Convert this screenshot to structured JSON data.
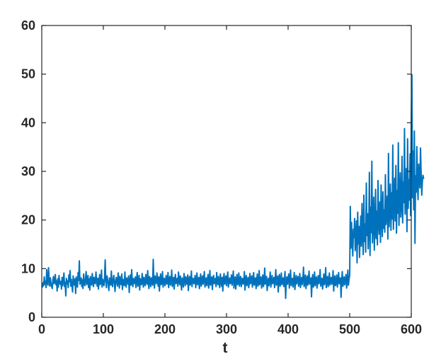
{
  "chart_data": {
    "type": "line",
    "title": "",
    "xlabel": "t",
    "ylabel": "",
    "xlim": [
      0,
      600
    ],
    "ylim": [
      0,
      60
    ],
    "xticks": [
      0,
      100,
      200,
      300,
      400,
      500,
      600
    ],
    "yticks": [
      0,
      10,
      20,
      30,
      40,
      50,
      60
    ],
    "grid": false,
    "series_color": "#0072BD",
    "series": [
      {
        "x_start": 1,
        "x_step": 1,
        "values": [
          6.2,
          7.1,
          6.5,
          8.3,
          6.8,
          7.4,
          6.1,
          9.8,
          7.2,
          6.6,
          10.2,
          7.8,
          6.4,
          8.1,
          7.0,
          6.3,
          5.9,
          7.6,
          8.4,
          6.9,
          7.3,
          8.8,
          6.7,
          7.5,
          5.4,
          7.9,
          6.2,
          8.6,
          7.1,
          6.8,
          7.4,
          5.8,
          8.2,
          6.5,
          7.7,
          9.1,
          6.3,
          7.2,
          4.4,
          8.0,
          6.9,
          7.5,
          6.1,
          8.7,
          7.3,
          9.6,
          6.4,
          7.8,
          6.7,
          5.2,
          8.5,
          7.1,
          6.6,
          7.9,
          4.9,
          8.3,
          7.0,
          6.2,
          9.2,
          7.6,
          11.6,
          6.8,
          7.4,
          8.1,
          6.3,
          7.7,
          5.9,
          8.9,
          7.2,
          6.5,
          7.8,
          9.4,
          6.7,
          7.3,
          8.6,
          6.1,
          7.9,
          5.6,
          8.4,
          7.0,
          6.6,
          9.0,
          7.5,
          6.3,
          8.2,
          7.1,
          6.9,
          9.3,
          7.6,
          6.4,
          8.0,
          5.8,
          7.4,
          8.8,
          6.7,
          7.2,
          9.7,
          6.2,
          7.8,
          7.0,
          6.5,
          8.3,
          11.8,
          7.3,
          6.1,
          8.5,
          7.7,
          6.8,
          5.5,
          8.1,
          7.4,
          6.6,
          9.5,
          7.0,
          6.3,
          7.9,
          8.6,
          6.9,
          5.3,
          7.5,
          8.2,
          7.1,
          6.4,
          9.1,
          7.6,
          6.0,
          8.4,
          7.2,
          6.7,
          8.9,
          5.7,
          7.8,
          7.3,
          6.5,
          9.3,
          7.0,
          6.2,
          8.1,
          7.7,
          6.8,
          8.5,
          5.1,
          7.4,
          8.7,
          6.6,
          9.8,
          7.2,
          6.3,
          8.0,
          7.5,
          6.9,
          8.3,
          6.1,
          7.8,
          9.2,
          6.4,
          7.1,
          8.6,
          5.6,
          7.9,
          7.3,
          6.7,
          9.0,
          7.6,
          6.2,
          8.2,
          7.0,
          6.5,
          8.8,
          7.4,
          6.8,
          9.6,
          7.1,
          5.9,
          8.4,
          7.7,
          6.3,
          8.1,
          7.2,
          6.6,
          11.9,
          7.5,
          6.0,
          8.5,
          7.3,
          6.9,
          9.1,
          7.8,
          6.4,
          8.3,
          5.4,
          7.6,
          8.9,
          6.7,
          7.0,
          9.4,
          6.2,
          7.9,
          8.0,
          6.5,
          7.4,
          8.6,
          6.8,
          7.2,
          9.2,
          6.1,
          7.7,
          8.4,
          6.6,
          7.1,
          9.7,
          6.3,
          7.5,
          8.2,
          5.8,
          7.8,
          8.8,
          6.9,
          7.3,
          8.0,
          6.4,
          9.3,
          7.6,
          6.7,
          8.5,
          7.0,
          5.6,
          8.1,
          7.4,
          6.2,
          9.0,
          7.9,
          6.5,
          8.3,
          7.2,
          6.8,
          8.7,
          5.5,
          7.7,
          8.4,
          6.6,
          7.1,
          9.5,
          6.3,
          7.8,
          8.0,
          6.9,
          7.4,
          8.6,
          6.1,
          7.5,
          9.1,
          6.7,
          7.0,
          8.2,
          5.9,
          7.6,
          8.9,
          6.4,
          7.3,
          8.5,
          6.8,
          7.9,
          9.4,
          6.2,
          7.2,
          8.1,
          6.5,
          7.7,
          8.8,
          6.0,
          7.4,
          9.6,
          6.6,
          7.1,
          8.3,
          5.7,
          7.8,
          8.6,
          6.9,
          7.5,
          8.0,
          6.3,
          9.2,
          7.3,
          6.7,
          8.4,
          7.0,
          6.1,
          8.9,
          7.6,
          6.4,
          8.2,
          5.4,
          7.9,
          9.0,
          6.8,
          7.2,
          8.5,
          6.5,
          7.7,
          9.3,
          6.2,
          7.4,
          8.1,
          6.9,
          7.1,
          8.7,
          6.6,
          7.8,
          9.5,
          6.0,
          7.5,
          8.3,
          5.8,
          7.3,
          8.8,
          6.7,
          7.0,
          9.1,
          6.4,
          7.6,
          8.4,
          6.3,
          7.9,
          8.0,
          6.8,
          7.2,
          9.4,
          5.6,
          7.7,
          8.6,
          6.5,
          7.4,
          8.2,
          6.1,
          7.1,
          9.0,
          6.9,
          7.8,
          8.5,
          6.2,
          7.5,
          9.2,
          6.6,
          7.3,
          8.1,
          5.9,
          7.6,
          8.9,
          6.4,
          7.0,
          9.6,
          6.7,
          7.9,
          8.3,
          6.0,
          7.2,
          8.7,
          6.3,
          7.4,
          10.1,
          6.8,
          7.7,
          8.4,
          5.5,
          7.1,
          8.0,
          6.5,
          7.8,
          9.3,
          6.2,
          7.5,
          8.6,
          6.9,
          7.3,
          8.2,
          6.1,
          7.6,
          9.8,
          6.6,
          7.0,
          8.5,
          5.2,
          7.9,
          8.8,
          6.4,
          7.2,
          9.1,
          6.7,
          7.4,
          8.1,
          6.3,
          7.7,
          9.4,
          3.9,
          7.1,
          8.3,
          6.8,
          7.8,
          8.9,
          6.0,
          7.5,
          9.7,
          6.5,
          7.3,
          8.0,
          6.2,
          7.6,
          9.2,
          5.7,
          7.0,
          8.6,
          6.9,
          7.9,
          8.4,
          6.4,
          7.2,
          9.0,
          6.1,
          7.4,
          8.2,
          6.7,
          7.8,
          10.3,
          6.3,
          7.1,
          8.7,
          5.9,
          7.5,
          8.5,
          6.6,
          7.7,
          9.5,
          6.8,
          7.3,
          8.1,
          4.2,
          7.6,
          8.8,
          6.2,
          7.0,
          9.3,
          6.5,
          7.9,
          8.3,
          6.0,
          7.2,
          8.6,
          6.9,
          7.4,
          9.8,
          6.4,
          7.8,
          8.0,
          5.8,
          7.1,
          8.9,
          6.7,
          7.5,
          10.2,
          6.1,
          7.6,
          8.4,
          6.3,
          7.3,
          9.1,
          6.6,
          7.7,
          8.2,
          6.8,
          7.0,
          9.6,
          5.4,
          7.9,
          8.5,
          6.5,
          7.2,
          8.7,
          6.2,
          7.4,
          9.2,
          6.9,
          7.8,
          8.1,
          4.1,
          7.6,
          9.4,
          6.4,
          7.1,
          8.3,
          6.7,
          7.5,
          8.8,
          6.0,
          7.3,
          9.7,
          6.6,
          7.9,
          8.6,
          22.8,
          14.2,
          19.5,
          15.8,
          12.6,
          18.1,
          16.4,
          20.3,
          13.7,
          17.2,
          19.8,
          11.2,
          21.6,
          15.1,
          18.7,
          12.3,
          16.9,
          20.8,
          14.6,
          23.4,
          17.8,
          12.9,
          25.1,
          15.6,
          19.2,
          13.4,
          27.6,
          16.8,
          21.3,
          14.1,
          18.5,
          29.8,
          12.7,
          22.6,
          17.4,
          32.1,
          15.3,
          20.1,
          24.7,
          13.8,
          18.9,
          26.3,
          16.2,
          21.8,
          14.9,
          28.1,
          19.6,
          17.1,
          23.7,
          15.4,
          27.2,
          20.4,
          16.6,
          25.8,
          18.3,
          22.1,
          17.5,
          29.3,
          19.1,
          21.6,
          24.9,
          16.1,
          33.7,
          18.6,
          22.8,
          27.4,
          17.9,
          25.6,
          20.2,
          35.4,
          18.1,
          23.2,
          28.6,
          19.8,
          31.2,
          17.3,
          26.1,
          21.4,
          35.9,
          18.9,
          24.3,
          29.7,
          20.6,
          22.9,
          33.1,
          19.4,
          27.8,
          23.6,
          38.8,
          21.2,
          25.4,
          30.6,
          17.6,
          36.7,
          22.4,
          28.3,
          24.1,
          33.6,
          20.9,
          40.1,
          49.9,
          24.6,
          34.2,
          22.1,
          38.3,
          15.2,
          29.1,
          25.7,
          35.1,
          27.4,
          24.2,
          31.5,
          28.3,
          26.6,
          34.8,
          29.7,
          25.1,
          27.9,
          29.2,
          28.6
        ]
      }
    ]
  }
}
